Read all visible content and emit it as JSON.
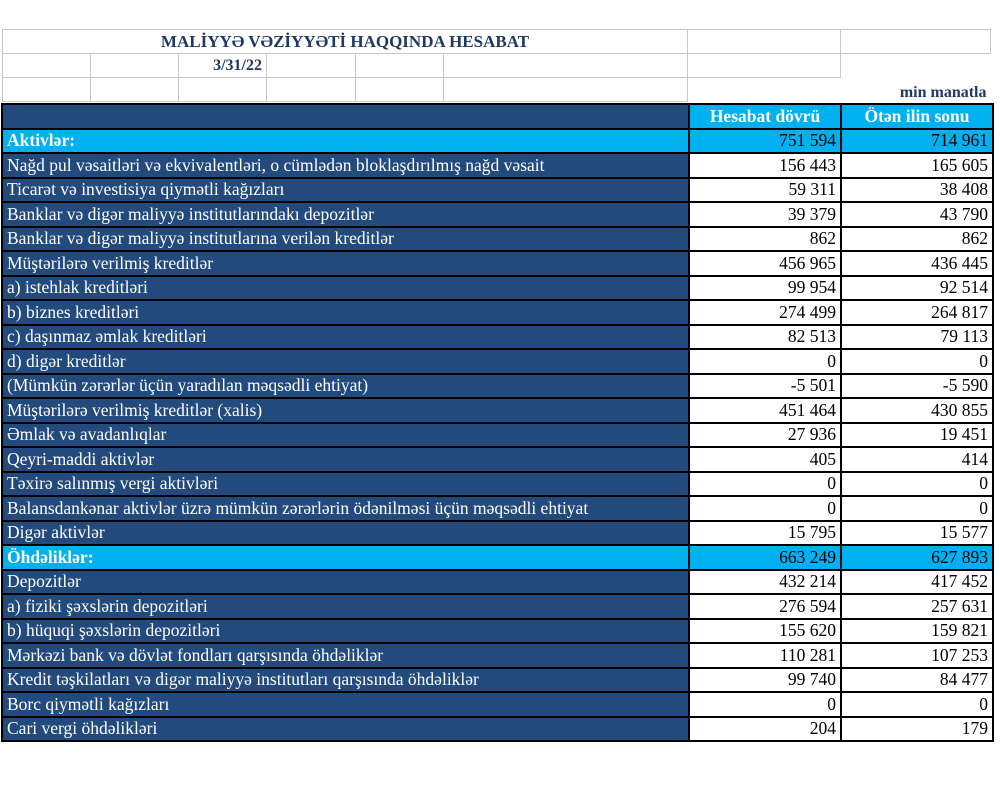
{
  "title": "MALİYYƏ VƏZİYYƏTİ HAQQINDA HESABAT",
  "date": "3/31/22",
  "unit": "min manatla",
  "columns": [
    "Hesabat dövrü",
    "Ötən ilin sonu"
  ],
  "colors": {
    "dark_blue": "#234a7d",
    "cyan": "#00b0f0",
    "title": "#1f3864"
  },
  "rows": [
    {
      "label": "Aktivlər:",
      "current": "751 594",
      "previous": "714 961",
      "section": true
    },
    {
      "label": "Nağd pul vəsaitləri və  ekvivalentləri, o cümlədən bloklaşdırılmış nağd vəsait",
      "current": "156 443",
      "previous": "165 605"
    },
    {
      "label": "Ticarət və investisiya qiymətli kağızları",
      "current": "59 311",
      "previous": "38 408"
    },
    {
      "label": "Banklar və digər maliyyə institutlarındakı depozitlər",
      "current": "39 379",
      "previous": "43 790"
    },
    {
      "label": "Banklar və digər maliyyə institutlarına verilən kreditlər",
      "current": "862",
      "previous": "862"
    },
    {
      "label": "Müştərilərə verilmiş kreditlər",
      "current": "456 965",
      "previous": "436 445"
    },
    {
      "label": "a) istehlak kreditləri",
      "current": "99 954",
      "previous": "92 514"
    },
    {
      "label": "b) biznes kreditləri",
      "current": "274 499",
      "previous": "264 817"
    },
    {
      "label": "c) daşınmaz əmlak kreditləri",
      "current": "82 513",
      "previous": "79 113"
    },
    {
      "label": "d) digər kreditlər",
      "current": "0",
      "previous": "0"
    },
    {
      "label": "(Mümkün zərərlər üçün yaradılan məqsədli ehtiyat)",
      "current": "-5 501",
      "previous": "-5 590"
    },
    {
      "label": "Müştərilərə verilmiş kreditlər (xalis)",
      "current": "451 464",
      "previous": "430 855"
    },
    {
      "label": "Əmlak və avadanlıqlar",
      "current": "27 936",
      "previous": "19 451"
    },
    {
      "label": "Qeyri-maddi aktivlər",
      "current": "405",
      "previous": "414"
    },
    {
      "label": "Təxirə salınmış vergi aktivləri",
      "current": "0",
      "previous": "0"
    },
    {
      "label": "Balansdankənar aktivlər üzrə mümkün zərərlərin ödənilməsi üçün məqsədli ehtiyat",
      "current": "0",
      "previous": "0"
    },
    {
      "label": "Digər aktivlər",
      "current": "15 795",
      "previous": "15 577"
    },
    {
      "label": "Öhdəliklər:",
      "current": "663 249",
      "previous": "627 893",
      "section": true
    },
    {
      "label": "Depozitlər",
      "current": "432 214",
      "previous": "417 452"
    },
    {
      "label": "a) fiziki şəxslərin depozitləri",
      "current": "276 594",
      "previous": "257 631"
    },
    {
      "label": "b) hüquqi şəxslərin depozitləri",
      "current": "155 620",
      "previous": "159 821"
    },
    {
      "label": "Mərkəzi bank və dövlət fondları qarşısında öhdəliklər",
      "current": "110 281",
      "previous": "107 253"
    },
    {
      "label": "Kredit təşkilatları və digər maliyyə institutları qarşısında öhdəliklər",
      "current": "99 740",
      "previous": "84 477"
    },
    {
      "label": "Borc qiymətli kağızları",
      "current": "0",
      "previous": "0"
    },
    {
      "label": "Cari vergi öhdəlikləri",
      "current": "204",
      "previous": "179"
    }
  ]
}
